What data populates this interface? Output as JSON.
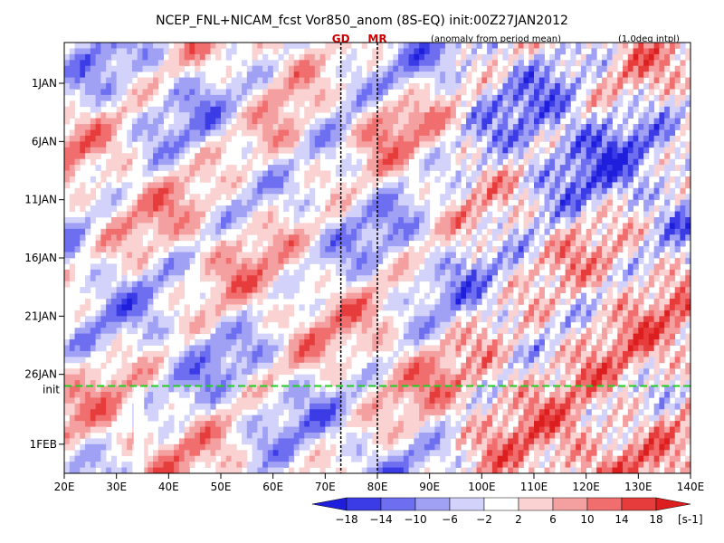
{
  "chart_data": {
    "type": "heatmap",
    "title": "NCEP_FNL+NICAM_fcst Vor850_anom (8S-EQ) init:00Z27JAN2012",
    "subtitle_left": "(anomaly from period mean)",
    "subtitle_right": "(1.0deg intpl)",
    "x_ticks": [
      "20E",
      "30E",
      "40E",
      "50E",
      "60E",
      "70E",
      "80E",
      "90E",
      "100E",
      "110E",
      "120E",
      "130E",
      "140E"
    ],
    "x_tick_values": [
      20,
      30,
      40,
      50,
      60,
      70,
      80,
      90,
      100,
      110,
      120,
      130,
      140
    ],
    "xlim": [
      20,
      140
    ],
    "y_ticks": [
      "1JAN",
      "6JAN",
      "11JAN",
      "16JAN",
      "21JAN",
      "26JAN",
      "1FEB"
    ],
    "y_tick_values": [
      0,
      5,
      10,
      15,
      20,
      25,
      31
    ],
    "ylim": [
      -3.5,
      33.5
    ],
    "init_line": {
      "label": "init",
      "value": 26.0,
      "color": "#22cc22"
    },
    "markers": [
      {
        "label": "GD",
        "x": 73,
        "color": "#cc0000"
      },
      {
        "label": "MR",
        "x": 80,
        "color": "#cc0000"
      }
    ],
    "colorbar": {
      "ticks": [
        "-18",
        "-14",
        "-10",
        "-6",
        "-2",
        "2",
        "6",
        "10",
        "14",
        "18"
      ],
      "unit": "[s-1]",
      "colors": [
        "#1e1edc",
        "#3c3ce6",
        "#6e6ef0",
        "#a0a0f5",
        "#d2d2fa",
        "#ffffff",
        "#fad2d2",
        "#f5a0a0",
        "#f06e6e",
        "#e63c3c",
        "#dc1e1e"
      ]
    },
    "data_gap": {
      "x_from": 33.3,
      "x_to": 35.3,
      "y_from": 26.0,
      "y_to": 33.5
    }
  }
}
